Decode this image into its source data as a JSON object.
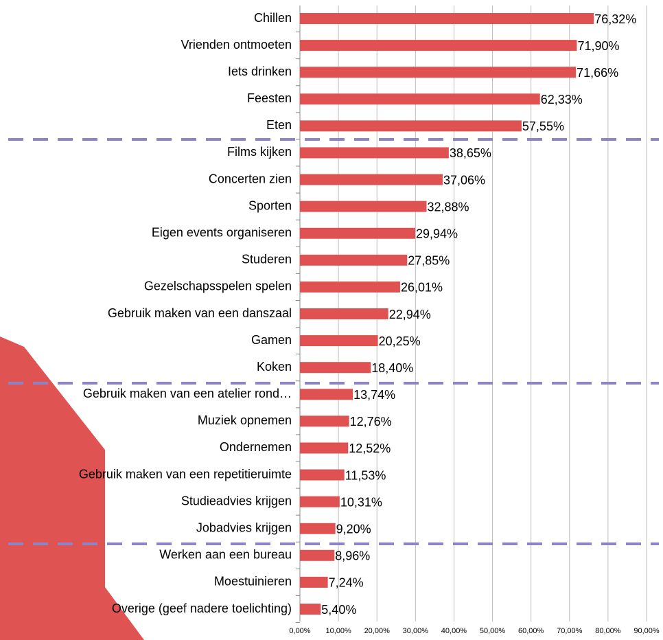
{
  "chart_data": {
    "type": "bar",
    "orientation": "horizontal",
    "categories": [
      "Chillen",
      "Vrienden ontmoeten",
      "Iets drinken",
      "Feesten",
      "Eten",
      "Films kijken",
      "Concerten zien",
      "Sporten",
      "Eigen events organiseren",
      "Studeren",
      "Gezelschapsspelen spelen",
      "Gebruik maken van een danszaal",
      "Gamen",
      "Koken",
      "Gebruik maken van een atelier rond…",
      "Muziek opnemen",
      "Ondernemen",
      "Gebruik maken van een repetitieruimte",
      "Studieadvies krijgen",
      "Jobadvies krijgen",
      "Werken aan een bureau",
      "Moestuinieren",
      "Overige (geef nadere toelichting)"
    ],
    "values": [
      76.32,
      71.9,
      71.66,
      62.33,
      57.55,
      38.65,
      37.06,
      32.88,
      29.94,
      27.85,
      26.01,
      22.94,
      20.25,
      18.4,
      13.74,
      12.76,
      12.52,
      11.53,
      10.31,
      9.2,
      8.96,
      7.24,
      5.4
    ],
    "value_labels": [
      "76,32%",
      "71,90%",
      "71,66%",
      "62,33%",
      "57,55%",
      "38,65%",
      "37,06%",
      "32,88%",
      "29,94%",
      "27,85%",
      "26,01%",
      "22,94%",
      "20,25%",
      "18,40%",
      "13,74%",
      "12,76%",
      "12,52%",
      "11,53%",
      "10,31%",
      "9,20%",
      "8,96%",
      "7,24%",
      "5,40%"
    ],
    "color": "#e05252",
    "xlim": [
      0,
      90
    ],
    "xticks": [
      {
        "value": 0,
        "label": "0,00%"
      },
      {
        "value": 10,
        "label": "10,00%"
      },
      {
        "value": 20,
        "label": "20,00%"
      },
      {
        "value": 30,
        "label": "30,00%"
      },
      {
        "value": 40,
        "label": "40,00%"
      },
      {
        "value": 50,
        "label": "50,00%"
      },
      {
        "value": 60,
        "label": "60,00%"
      },
      {
        "value": 70,
        "label": "70,00%"
      },
      {
        "value": 80,
        "label": "80,00%"
      },
      {
        "value": 90,
        "label": "90,00%"
      }
    ],
    "grid": true
  }
}
